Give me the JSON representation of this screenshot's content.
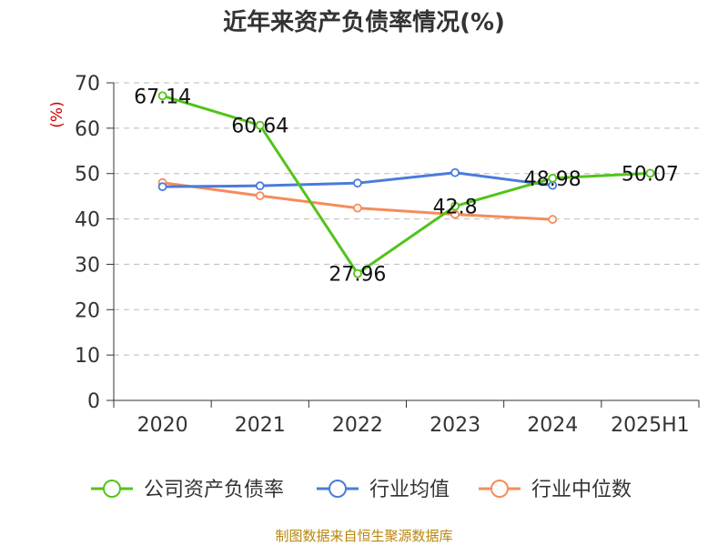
{
  "chart_data": {
    "type": "line",
    "title": "近年来资产负债率情况(%)",
    "ylabel": "(%)",
    "xlabel": "",
    "categories": [
      "2020",
      "2021",
      "2022",
      "2023",
      "2024",
      "2025H1"
    ],
    "ylim": [
      0,
      70
    ],
    "yticks": [
      0,
      10,
      20,
      30,
      40,
      50,
      60,
      70
    ],
    "grid": "horizontal-dashed",
    "legend_position": "bottom",
    "series": [
      {
        "name": "公司资产负债率",
        "color": "#52c41a",
        "values": [
          67.14,
          60.64,
          27.96,
          42.8,
          48.98,
          50.07
        ],
        "labels": [
          "67.14",
          "60.64",
          "27.96",
          "42.8",
          "48.98",
          "50.07"
        ]
      },
      {
        "name": "行业均值",
        "color": "#4a7bdc",
        "values": [
          47.1,
          47.3,
          47.9,
          50.2,
          47.4,
          null
        ]
      },
      {
        "name": "行业中位数",
        "color": "#f58c5b",
        "values": [
          48.0,
          45.1,
          42.4,
          41.0,
          39.9,
          null
        ]
      }
    ],
    "source": "制图数据来自恒生聚源数据库"
  }
}
